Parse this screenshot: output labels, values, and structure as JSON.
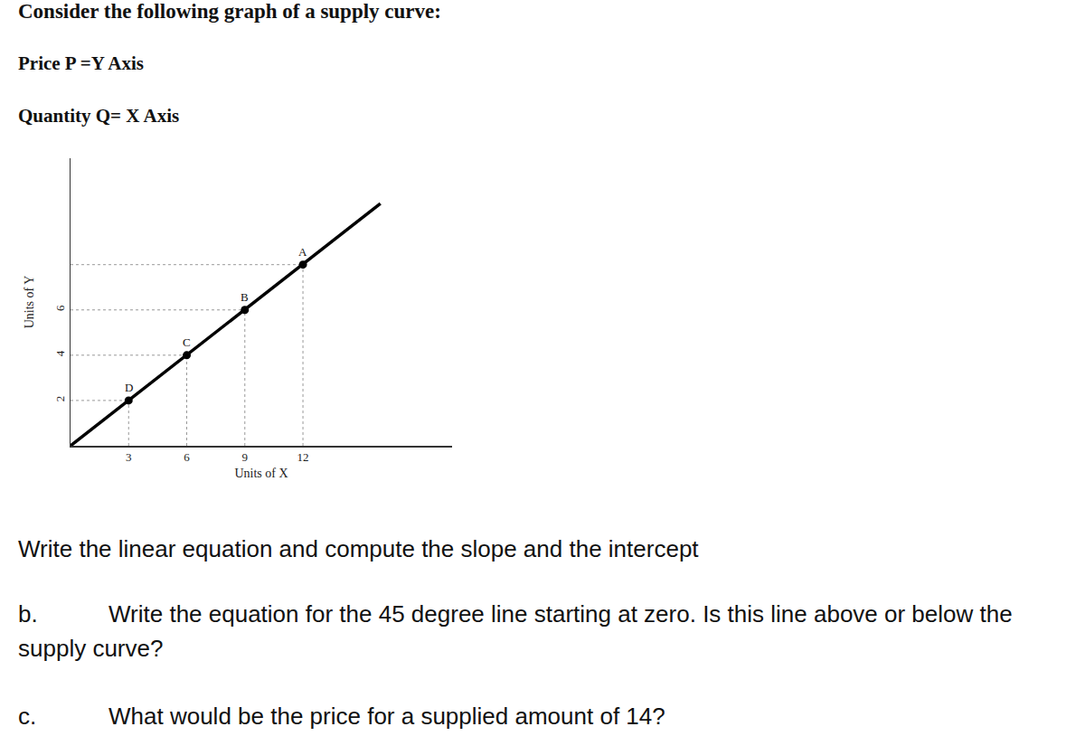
{
  "header": {
    "title": "Consider the following graph of a supply curve:",
    "lines": [
      "Price P =Y Axis",
      "Quantity Q= X Axis"
    ]
  },
  "chart_data": {
    "type": "line",
    "x_label": "Units of X",
    "y_label": "Units of Y",
    "xlim": [
      0,
      19.7
    ],
    "ylim": [
      0,
      12.7
    ],
    "xticks": [
      3,
      6,
      9,
      12
    ],
    "yticks": [
      2,
      4,
      6
    ],
    "grid": false,
    "color": "#000000",
    "x": [
      0,
      16
    ],
    "values": [
      0,
      10.7
    ],
    "points": {
      "labels": [
        "D",
        "C",
        "B",
        "A"
      ],
      "x": [
        3,
        6,
        9,
        12
      ],
      "values": [
        2,
        4,
        6,
        8
      ]
    }
  },
  "questions": [
    {
      "text": "Write the linear equation and compute the slope and the intercept"
    },
    {
      "label": "b.",
      "text": "Write the equation for the 45 degree line starting at zero. Is this line above or below the supply curve?"
    },
    {
      "label": "c.",
      "text": "What would be the price for a supplied amount of 14?"
    }
  ]
}
